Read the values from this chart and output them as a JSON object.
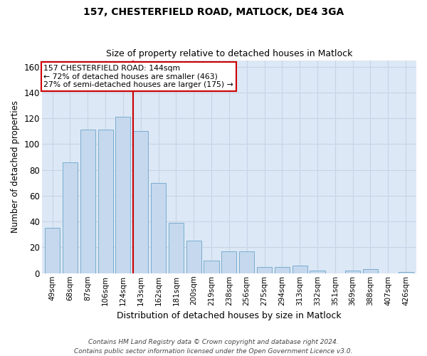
{
  "title_line1": "157, CHESTERFIELD ROAD, MATLOCK, DE4 3GA",
  "title_line2": "Size of property relative to detached houses in Matlock",
  "xlabel": "Distribution of detached houses by size in Matlock",
  "ylabel": "Number of detached properties",
  "categories": [
    "49sqm",
    "68sqm",
    "87sqm",
    "106sqm",
    "124sqm",
    "143sqm",
    "162sqm",
    "181sqm",
    "200sqm",
    "219sqm",
    "238sqm",
    "256sqm",
    "275sqm",
    "294sqm",
    "313sqm",
    "332sqm",
    "351sqm",
    "369sqm",
    "388sqm",
    "407sqm",
    "426sqm"
  ],
  "values": [
    35,
    86,
    111,
    111,
    121,
    110,
    70,
    39,
    25,
    10,
    17,
    17,
    5,
    5,
    6,
    2,
    0,
    2,
    3,
    0,
    1
  ],
  "bar_color": "#c5d8ed",
  "bar_edge_color": "#7aadd0",
  "highlight_bin_index": 5,
  "highlight_color": "#cc0000",
  "annotation_line1": "157 CHESTERFIELD ROAD: 144sqm",
  "annotation_line2": "← 72% of detached houses are smaller (463)",
  "annotation_line3": "27% of semi-detached houses are larger (175) →",
  "annotation_box_color": "#ffffff",
  "annotation_box_edge": "#cc0000",
  "ylim": [
    0,
    165
  ],
  "yticks": [
    0,
    20,
    40,
    60,
    80,
    100,
    120,
    140,
    160
  ],
  "grid_color": "#c8d4e8",
  "bg_color": "#dce8f5",
  "fig_bg_color": "#ffffff",
  "footer_line1": "Contains HM Land Registry data © Crown copyright and database right 2024.",
  "footer_line2": "Contains public sector information licensed under the Open Government Licence v3.0."
}
